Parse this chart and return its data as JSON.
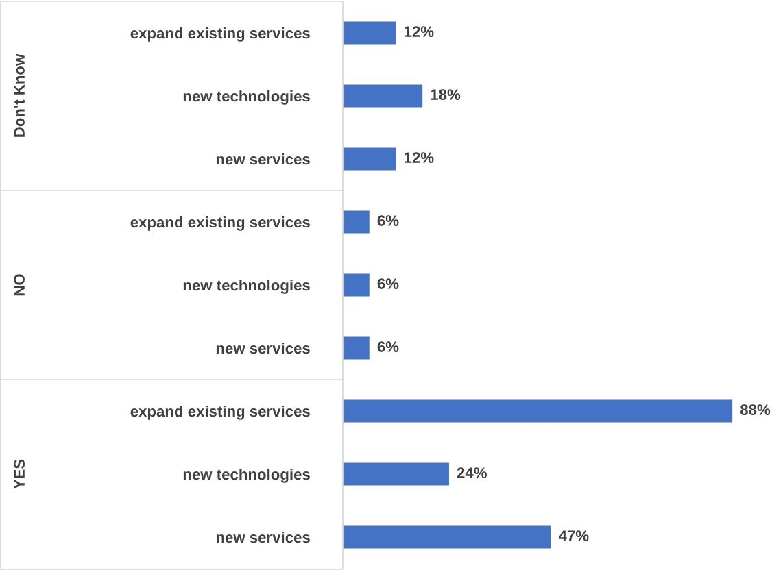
{
  "chart_data": {
    "type": "bar",
    "orientation": "horizontal",
    "categories": [
      "expand existing services",
      "new technologies",
      "new services",
      "expand existing services",
      "new technologies",
      "new services",
      "expand existing services",
      "new technologies",
      "new services"
    ],
    "values": [
      12,
      18,
      12,
      6,
      6,
      6,
      88,
      24,
      47
    ],
    "value_labels": [
      "12%",
      "18%",
      "12%",
      "6%",
      "6%",
      "6%",
      "88%",
      "24%",
      "47%"
    ],
    "color": "#4472c4",
    "annotations": [
      "Don't Know",
      "NO",
      "YES"
    ],
    "tick_labels": "y",
    "grid": false,
    "legend": false
  }
}
